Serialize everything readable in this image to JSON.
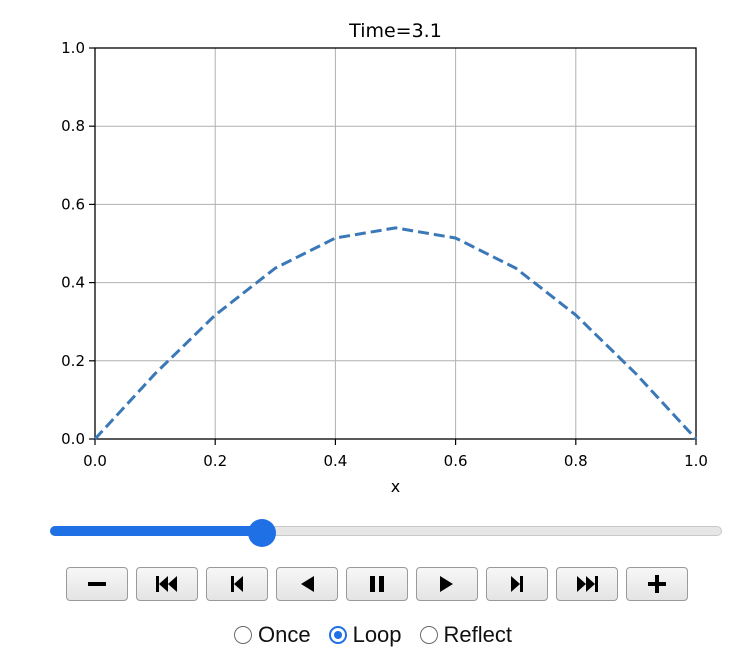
{
  "chart_data": {
    "type": "line",
    "title": "Time=3.1",
    "xlabel": "x",
    "ylabel": "",
    "xlim": [
      0.0,
      1.0
    ],
    "ylim": [
      0.0,
      1.0
    ],
    "x_ticks": [
      "0.0",
      "0.2",
      "0.4",
      "0.6",
      "0.8",
      "1.0"
    ],
    "y_ticks": [
      "0.0",
      "0.2",
      "0.4",
      "0.6",
      "0.8",
      "1.0"
    ],
    "grid": true,
    "series": [
      {
        "color": "#3a78b8",
        "style": "dashed",
        "x": [
          0.0,
          0.1,
          0.2,
          0.3,
          0.4,
          0.5,
          0.6,
          0.7,
          0.8,
          0.9,
          1.0
        ],
        "y": [
          0.0,
          0.167,
          0.317,
          0.437,
          0.514,
          0.54,
          0.514,
          0.437,
          0.317,
          0.167,
          0.0
        ]
      }
    ]
  },
  "slider": {
    "value_fraction": 0.316,
    "color": "#1f6fe5"
  },
  "controls": {
    "buttons": [
      {
        "name": "decrease-speed-button",
        "icon": "minus-icon"
      },
      {
        "name": "first-frame-button",
        "icon": "skip-to-start-icon"
      },
      {
        "name": "previous-frame-button",
        "icon": "step-back-icon"
      },
      {
        "name": "play-reverse-button",
        "icon": "play-reverse-icon"
      },
      {
        "name": "pause-button",
        "icon": "pause-icon"
      },
      {
        "name": "play-button",
        "icon": "play-icon"
      },
      {
        "name": "next-frame-button",
        "icon": "step-forward-icon"
      },
      {
        "name": "last-frame-button",
        "icon": "skip-to-end-icon"
      },
      {
        "name": "increase-speed-button",
        "icon": "plus-icon"
      }
    ]
  },
  "modes": {
    "options": [
      "Once",
      "Loop",
      "Reflect"
    ],
    "selected": "Loop"
  }
}
